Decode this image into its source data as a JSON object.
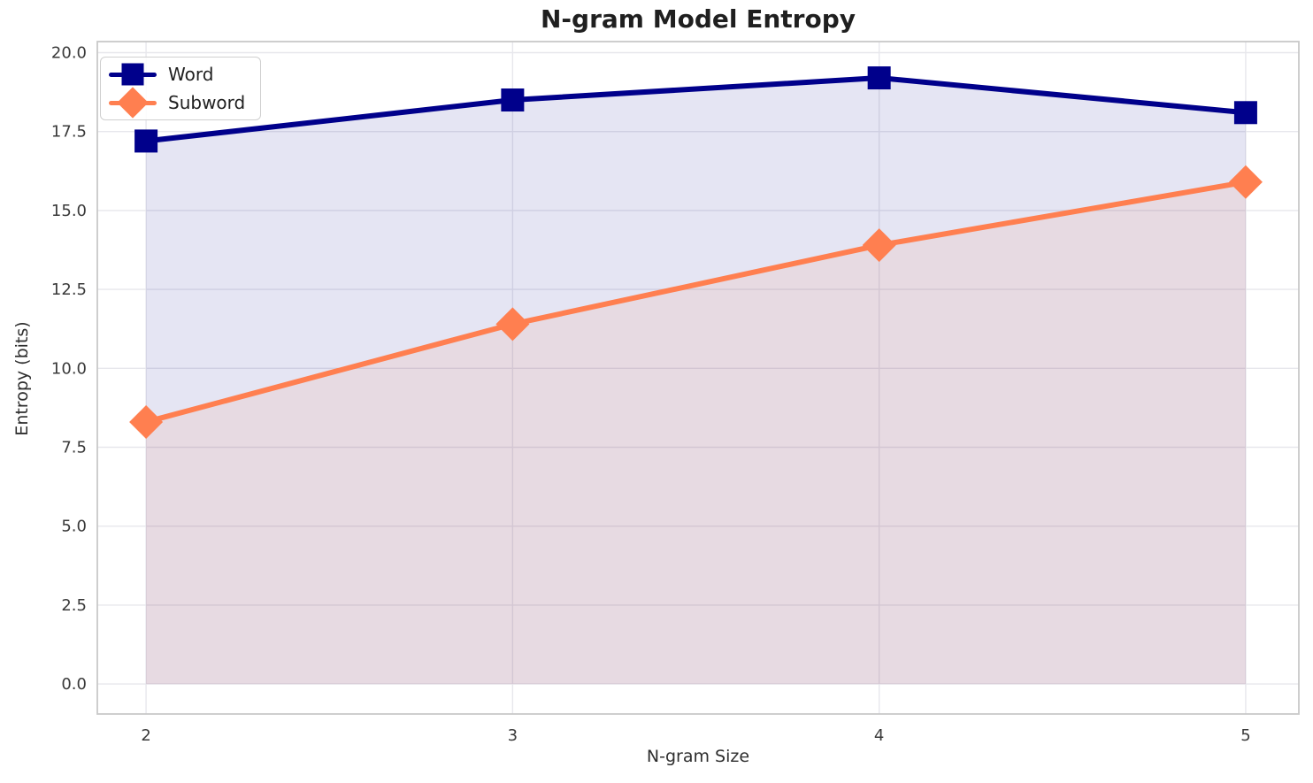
{
  "chart_data": {
    "type": "line",
    "title": "N-gram Model Entropy",
    "xlabel": "N-gram Size",
    "ylabel": "Entropy (bits)",
    "x": [
      2,
      3,
      4,
      5
    ],
    "x_tick_labels": [
      "2",
      "3",
      "4",
      "5"
    ],
    "y_tick_values": [
      0,
      2.5,
      5,
      7.5,
      10,
      12.5,
      15,
      17.5,
      20
    ],
    "y_tick_labels": [
      "0.0",
      "2.5",
      "5.0",
      "7.5",
      "10.0",
      "12.5",
      "15.0",
      "17.5",
      "20.0"
    ],
    "xlim": [
      1.867,
      5.145
    ],
    "ylim": [
      -0.95,
      20.35
    ],
    "grid": true,
    "fill_alpha": 0.1,
    "fill_baseline": 0,
    "legend_position": "upper left",
    "series": [
      {
        "name": "Word",
        "marker": "square",
        "color": "#00008B",
        "values": [
          17.2,
          18.5,
          19.2,
          18.1
        ]
      },
      {
        "name": "Subword",
        "marker": "diamond",
        "color": "#FF7F50",
        "values": [
          8.3,
          11.4,
          13.9,
          15.9
        ]
      }
    ],
    "style": {
      "background": "#ffffff",
      "grid_color": "#e7e7ec",
      "spine_color": "#c9c9c9",
      "tick_label_color": "#3a3a3a",
      "title_color": "#1f1f1f",
      "axis_label_color": "#2e2e2e"
    }
  }
}
